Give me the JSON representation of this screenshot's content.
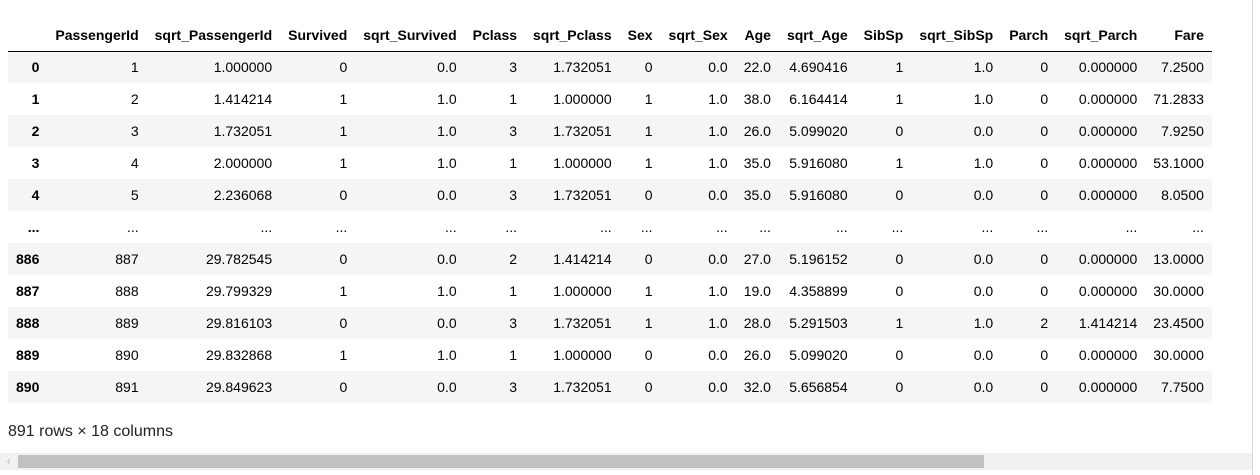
{
  "table": {
    "columns": [
      "",
      "PassengerId",
      "sqrt_PassengerId",
      "Survived",
      "sqrt_Survived",
      "Pclass",
      "sqrt_Pclass",
      "Sex",
      "sqrt_Sex",
      "Age",
      "sqrt_Age",
      "SibSp",
      "sqrt_SibSp",
      "Parch",
      "sqrt_Parch",
      "Fare"
    ],
    "rows": [
      [
        "0",
        "1",
        "1.000000",
        "0",
        "0.0",
        "3",
        "1.732051",
        "0",
        "0.0",
        "22.0",
        "4.690416",
        "1",
        "1.0",
        "0",
        "0.000000",
        "7.2500"
      ],
      [
        "1",
        "2",
        "1.414214",
        "1",
        "1.0",
        "1",
        "1.000000",
        "1",
        "1.0",
        "38.0",
        "6.164414",
        "1",
        "1.0",
        "0",
        "0.000000",
        "71.2833"
      ],
      [
        "2",
        "3",
        "1.732051",
        "1",
        "1.0",
        "3",
        "1.732051",
        "1",
        "1.0",
        "26.0",
        "5.099020",
        "0",
        "0.0",
        "0",
        "0.000000",
        "7.9250"
      ],
      [
        "3",
        "4",
        "2.000000",
        "1",
        "1.0",
        "1",
        "1.000000",
        "1",
        "1.0",
        "35.0",
        "5.916080",
        "1",
        "1.0",
        "0",
        "0.000000",
        "53.1000"
      ],
      [
        "4",
        "5",
        "2.236068",
        "0",
        "0.0",
        "3",
        "1.732051",
        "0",
        "0.0",
        "35.0",
        "5.916080",
        "0",
        "0.0",
        "0",
        "0.000000",
        "8.0500"
      ],
      [
        "...",
        "...",
        "...",
        "...",
        "...",
        "...",
        "...",
        "...",
        "...",
        "...",
        "...",
        "...",
        "...",
        "...",
        "...",
        "..."
      ],
      [
        "886",
        "887",
        "29.782545",
        "0",
        "0.0",
        "2",
        "1.414214",
        "0",
        "0.0",
        "27.0",
        "5.196152",
        "0",
        "0.0",
        "0",
        "0.000000",
        "13.0000"
      ],
      [
        "887",
        "888",
        "29.799329",
        "1",
        "1.0",
        "1",
        "1.000000",
        "1",
        "1.0",
        "19.0",
        "4.358899",
        "0",
        "0.0",
        "0",
        "0.000000",
        "30.0000"
      ],
      [
        "888",
        "889",
        "29.816103",
        "0",
        "0.0",
        "3",
        "1.732051",
        "1",
        "1.0",
        "28.0",
        "5.291503",
        "1",
        "1.0",
        "2",
        "1.414214",
        "23.4500"
      ],
      [
        "889",
        "890",
        "29.832868",
        "1",
        "1.0",
        "1",
        "1.000000",
        "0",
        "0.0",
        "26.0",
        "5.099020",
        "0",
        "0.0",
        "0",
        "0.000000",
        "30.0000"
      ],
      [
        "890",
        "891",
        "29.849623",
        "0",
        "0.0",
        "3",
        "1.732051",
        "0",
        "0.0",
        "32.0",
        "5.656854",
        "0",
        "0.0",
        "0",
        "0.000000",
        "7.7500"
      ]
    ]
  },
  "shape_text": "891 rows × 18 columns",
  "scrollbar": {
    "left_arrow": "‹"
  },
  "colors": {
    "stripe": "#f5f5f5",
    "scroll_track": "#f1f1f1",
    "scroll_thumb": "#c1c1c1"
  }
}
